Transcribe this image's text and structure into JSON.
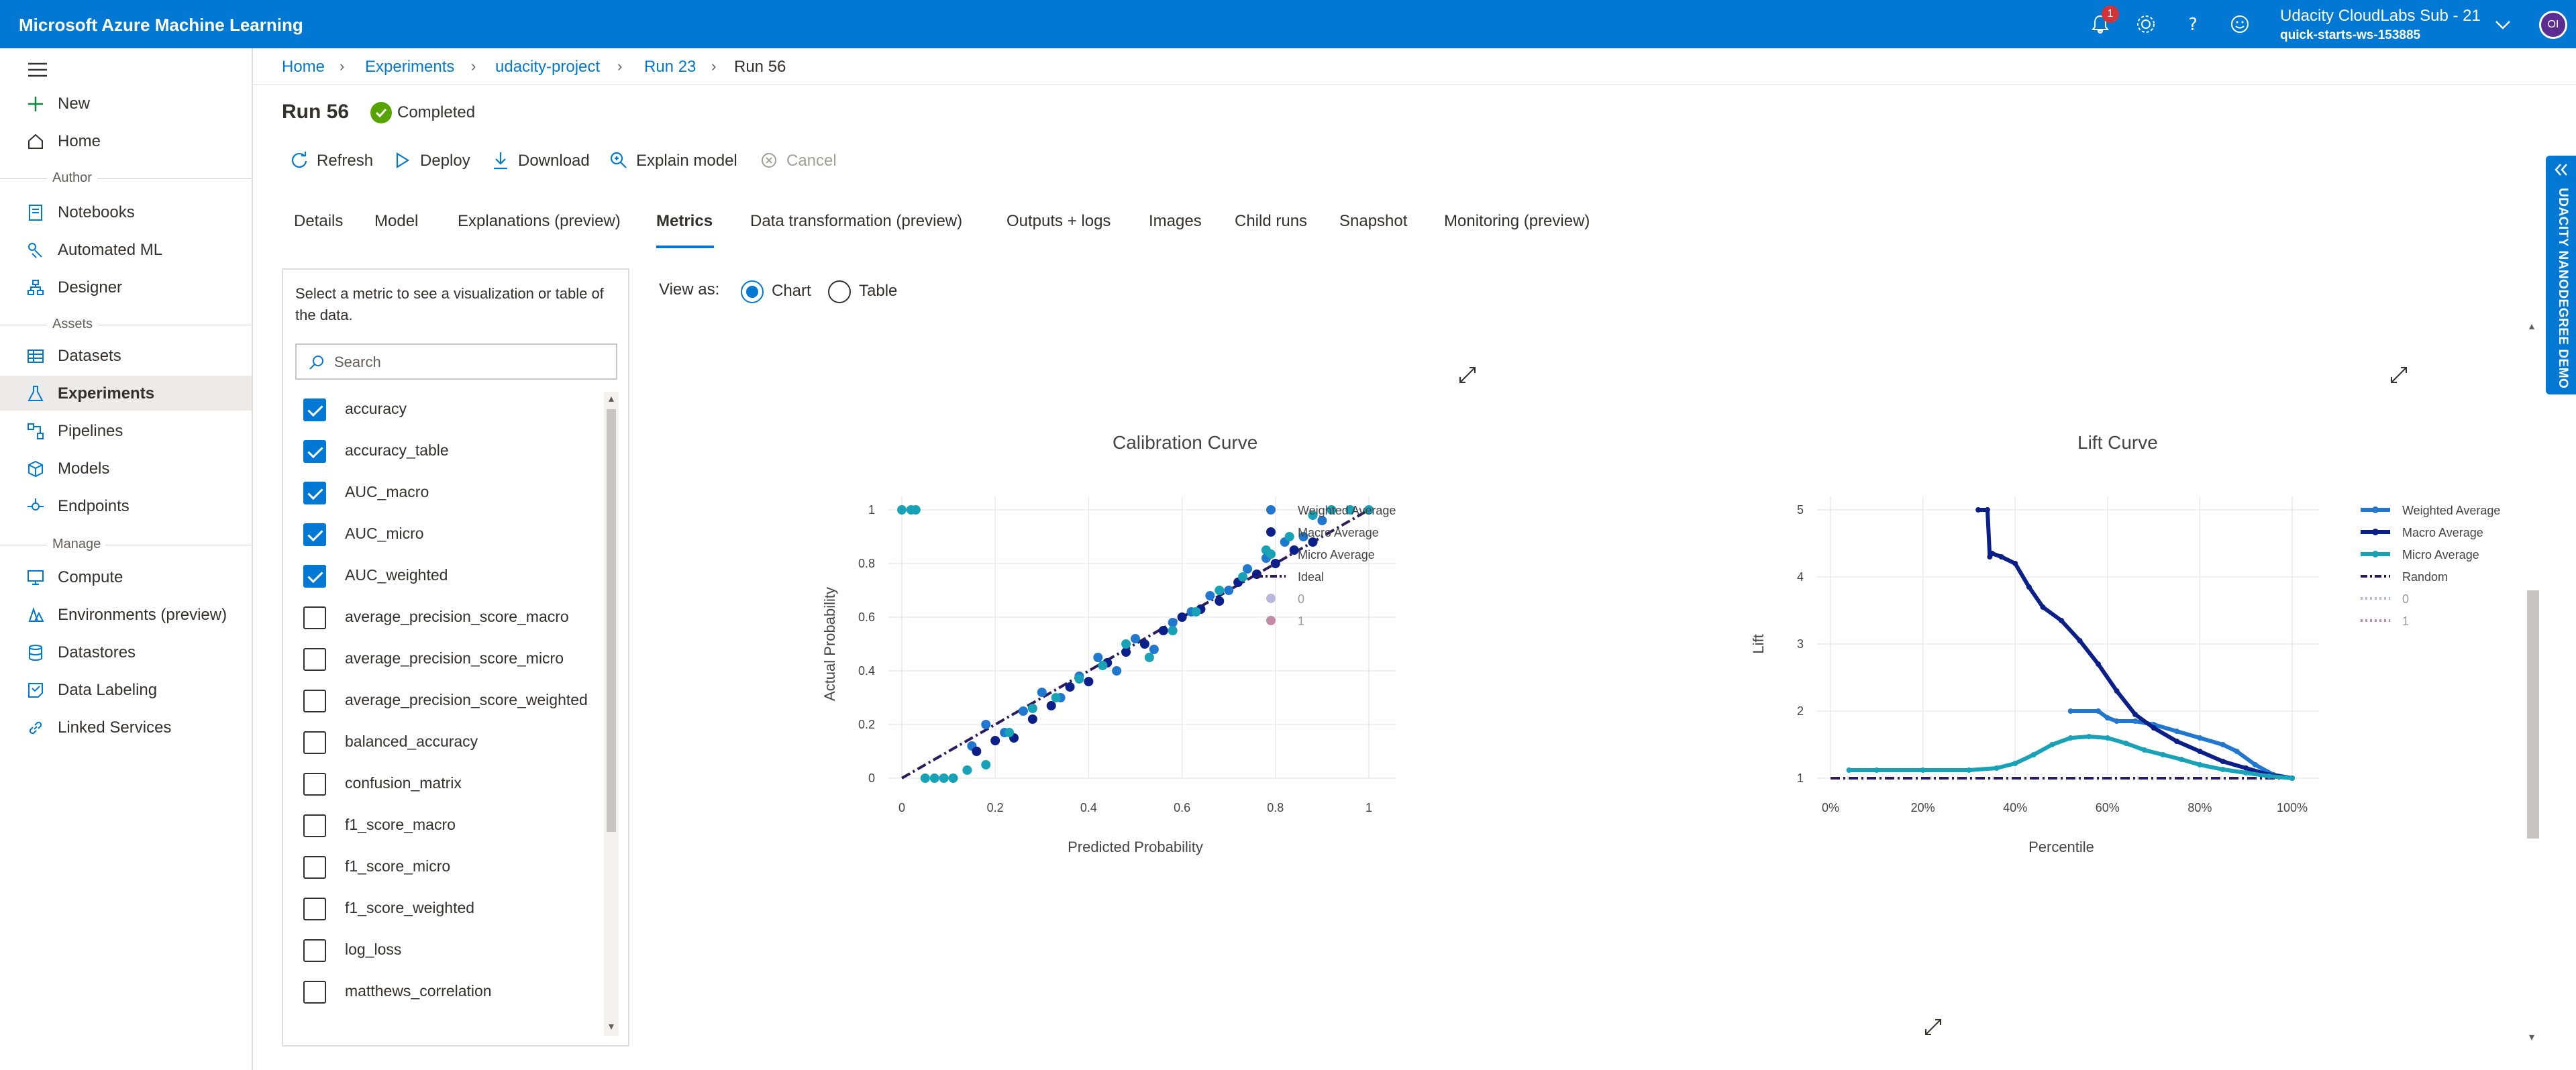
{
  "app": {
    "title": "Microsoft Azure Machine Learning",
    "notification_count": "1",
    "account_name": "Udacity CloudLabs Sub - 21",
    "workspace": "quick-starts-ws-153885",
    "avatar_initials": "OI"
  },
  "nav": {
    "items_top": [
      {
        "label": "New",
        "icon": "plus-icon"
      },
      {
        "label": "Home",
        "icon": "home-icon"
      }
    ],
    "section_author": "Author",
    "items_author": [
      {
        "label": "Notebooks",
        "icon": "notebook-icon"
      },
      {
        "label": "Automated ML",
        "icon": "automl-icon"
      },
      {
        "label": "Designer",
        "icon": "designer-icon"
      }
    ],
    "section_assets": "Assets",
    "items_assets": [
      {
        "label": "Datasets",
        "icon": "datasets-icon"
      },
      {
        "label": "Experiments",
        "icon": "experiments-icon"
      },
      {
        "label": "Pipelines",
        "icon": "pipelines-icon"
      },
      {
        "label": "Models",
        "icon": "models-icon"
      },
      {
        "label": "Endpoints",
        "icon": "endpoints-icon"
      }
    ],
    "section_manage": "Manage",
    "items_manage": [
      {
        "label": "Compute",
        "icon": "compute-icon"
      },
      {
        "label": "Environments (preview)",
        "icon": "environments-icon"
      },
      {
        "label": "Datastores",
        "icon": "datastores-icon"
      },
      {
        "label": "Data Labeling",
        "icon": "data-labeling-icon"
      },
      {
        "label": "Linked Services",
        "icon": "linked-services-icon"
      }
    ],
    "active": "Experiments"
  },
  "breadcrumb": [
    "Home",
    "Experiments",
    "udacity-project",
    "Run 23",
    "Run 56"
  ],
  "run": {
    "title": "Run 56",
    "status": "Completed",
    "status_color": "#57a300"
  },
  "commands": {
    "refresh": "Refresh",
    "deploy": "Deploy",
    "download": "Download",
    "explain": "Explain model",
    "cancel": "Cancel"
  },
  "tabs": [
    "Details",
    "Model",
    "Explanations (preview)",
    "Metrics",
    "Data transformation (preview)",
    "Outputs + logs",
    "Images",
    "Child runs",
    "Snapshot",
    "Monitoring (preview)"
  ],
  "active_tab": "Metrics",
  "metrics_panel": {
    "help": "Select a metric to see a visualization or table of the data.",
    "search_placeholder": "Search",
    "items": [
      {
        "label": "accuracy",
        "checked": true
      },
      {
        "label": "accuracy_table",
        "checked": true
      },
      {
        "label": "AUC_macro",
        "checked": true
      },
      {
        "label": "AUC_micro",
        "checked": true
      },
      {
        "label": "AUC_weighted",
        "checked": true
      },
      {
        "label": "average_precision_score_macro",
        "checked": false
      },
      {
        "label": "average_precision_score_micro",
        "checked": false
      },
      {
        "label": "average_precision_score_weighted",
        "checked": false
      },
      {
        "label": "balanced_accuracy",
        "checked": false
      },
      {
        "label": "confusion_matrix",
        "checked": false
      },
      {
        "label": "f1_score_macro",
        "checked": false
      },
      {
        "label": "f1_score_micro",
        "checked": false
      },
      {
        "label": "f1_score_weighted",
        "checked": false
      },
      {
        "label": "log_loss",
        "checked": false
      },
      {
        "label": "matthews_correlation",
        "checked": false
      }
    ]
  },
  "view_as": {
    "label": "View as:",
    "chart": "Chart",
    "table": "Table",
    "selected": "Chart"
  },
  "side_banner": "UDACITY NANODEGREE DEMO",
  "colors": {
    "accent": "#0078d4",
    "weighted": "#1f77d0",
    "macro": "#0b1f8a",
    "micro": "#17a2b8",
    "ideal": "#2b1a5c"
  },
  "chart_data": [
    {
      "type": "scatter",
      "title": "Calibration Curve",
      "xlabel": "Predicted Probability",
      "ylabel": "Actual Probability",
      "xlim": [
        0,
        1
      ],
      "ylim": [
        0,
        1
      ],
      "xticks": [
        "0",
        "0.2",
        "0.4",
        "0.6",
        "0.8",
        "1"
      ],
      "yticks": [
        "0",
        "0.2",
        "0.4",
        "0.6",
        "0.8",
        "1"
      ],
      "grid": true,
      "legend_position": "right",
      "legend": [
        "Weighted Average",
        "Macro Average",
        "Micro Average",
        "Ideal",
        "0",
        "1"
      ],
      "series": [
        {
          "name": "Weighted Average",
          "color": "#1f77d0",
          "x": [
            0.15,
            0.18,
            0.22,
            0.26,
            0.3,
            0.34,
            0.38,
            0.42,
            0.46,
            0.5,
            0.54,
            0.58,
            0.62,
            0.66,
            0.7,
            0.74,
            0.78,
            0.82,
            0.86,
            0.9
          ],
          "y": [
            0.12,
            0.2,
            0.17,
            0.25,
            0.32,
            0.3,
            0.38,
            0.45,
            0.4,
            0.52,
            0.48,
            0.58,
            0.62,
            0.68,
            0.7,
            0.78,
            0.82,
            0.88,
            0.9,
            0.96
          ]
        },
        {
          "name": "Macro Average",
          "color": "#0b1f8a",
          "x": [
            0.16,
            0.2,
            0.24,
            0.28,
            0.32,
            0.36,
            0.4,
            0.44,
            0.48,
            0.52,
            0.56,
            0.6,
            0.64,
            0.68,
            0.72,
            0.76,
            0.8,
            0.84,
            0.88
          ],
          "y": [
            0.1,
            0.14,
            0.15,
            0.22,
            0.27,
            0.34,
            0.36,
            0.43,
            0.47,
            0.5,
            0.55,
            0.6,
            0.63,
            0.66,
            0.73,
            0.76,
            0.8,
            0.85,
            0.88
          ]
        },
        {
          "name": "Micro Average",
          "color": "#17a2b8",
          "x": [
            0.0,
            0.02,
            0.03,
            0.05,
            0.07,
            0.09,
            0.11,
            0.14,
            0.18,
            0.23,
            0.28,
            0.33,
            0.38,
            0.43,
            0.48,
            0.53,
            0.58,
            0.63,
            0.68,
            0.73,
            0.78,
            0.83,
            0.88,
            0.92,
            0.96,
            1.0
          ],
          "y": [
            1.0,
            1.0,
            1.0,
            0.0,
            0.0,
            0.0,
            0.0,
            0.03,
            0.05,
            0.17,
            0.26,
            0.3,
            0.37,
            0.42,
            0.5,
            0.45,
            0.55,
            0.62,
            0.7,
            0.75,
            0.85,
            0.9,
            0.98,
            1.0,
            1.0,
            1.0
          ]
        }
      ],
      "ideal": {
        "name": "Ideal",
        "x": [
          0,
          1
        ],
        "y": [
          0,
          1
        ]
      }
    },
    {
      "type": "line",
      "title": "Lift Curve",
      "xlabel": "Percentile",
      "ylabel": "Lift",
      "xlim": [
        0,
        100
      ],
      "ylim": [
        1,
        5
      ],
      "xticks": [
        "0%",
        "20%",
        "40%",
        "60%",
        "80%",
        "100%"
      ],
      "yticks": [
        "1",
        "2",
        "3",
        "4",
        "5"
      ],
      "grid": true,
      "legend_position": "right",
      "legend": [
        "Weighted Average",
        "Macro Average",
        "Micro Average",
        "Random",
        "0",
        "1"
      ],
      "series": [
        {
          "name": "Weighted Average",
          "color": "#1f77d0",
          "x": [
            52,
            58,
            60,
            62,
            66,
            70,
            75,
            80,
            85,
            88,
            92,
            96,
            100
          ],
          "y": [
            2.0,
            2.0,
            1.9,
            1.85,
            1.85,
            1.8,
            1.7,
            1.6,
            1.5,
            1.4,
            1.2,
            1.05,
            1.0
          ]
        },
        {
          "name": "Macro Average",
          "color": "#0b1f8a",
          "x": [
            32,
            34,
            34.5,
            35,
            37,
            40,
            43,
            46,
            50,
            54,
            58,
            62,
            66,
            70,
            75,
            80,
            85,
            90,
            95,
            100
          ],
          "y": [
            5.0,
            5.0,
            4.3,
            4.35,
            4.3,
            4.2,
            3.85,
            3.55,
            3.35,
            3.05,
            2.7,
            2.3,
            1.95,
            1.75,
            1.55,
            1.4,
            1.25,
            1.15,
            1.05,
            1.0
          ]
        },
        {
          "name": "Micro Average",
          "color": "#17a2b8",
          "x": [
            4,
            10,
            20,
            30,
            36,
            40,
            44,
            48,
            52,
            56,
            60,
            64,
            68,
            72,
            76,
            80,
            85,
            90,
            95,
            100
          ],
          "y": [
            1.12,
            1.12,
            1.12,
            1.12,
            1.15,
            1.22,
            1.35,
            1.5,
            1.6,
            1.62,
            1.6,
            1.52,
            1.42,
            1.35,
            1.28,
            1.2,
            1.13,
            1.08,
            1.03,
            1.0
          ]
        }
      ],
      "random": {
        "name": "Random",
        "x": [
          0,
          100
        ],
        "y": [
          1,
          1
        ]
      }
    }
  ]
}
